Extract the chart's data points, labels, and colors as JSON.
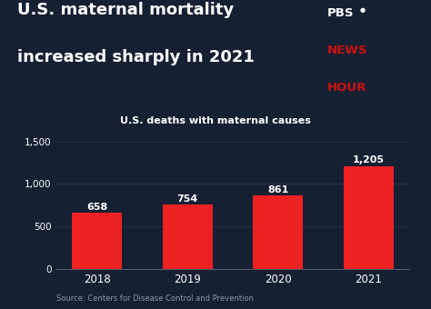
{
  "categories": [
    "2018",
    "2019",
    "2020",
    "2021"
  ],
  "values": [
    658,
    754,
    861,
    1205
  ],
  "bar_color": "#ee2222",
  "background_color": "#162033",
  "text_color": "#ffffff",
  "title_line1": "U.S. maternal mortality",
  "title_line2": "increased sharply in 2021",
  "subtitle": "U.S. deaths with maternal causes",
  "source": "Source: Centers for Disease Control and Prevention",
  "ylim": [
    0,
    1600
  ],
  "yticks": [
    0,
    500,
    1000,
    1500
  ],
  "ytick_labels": [
    "0",
    "500",
    "1,000",
    "1,500"
  ],
  "grid_color": "#253350",
  "axis_color": "#4a5a70",
  "value_labels": [
    "658",
    "754",
    "861",
    "1,205"
  ],
  "pbs_color": "#cc1111",
  "news_hour_color": "#cc1111",
  "source_color": "#8899aa"
}
